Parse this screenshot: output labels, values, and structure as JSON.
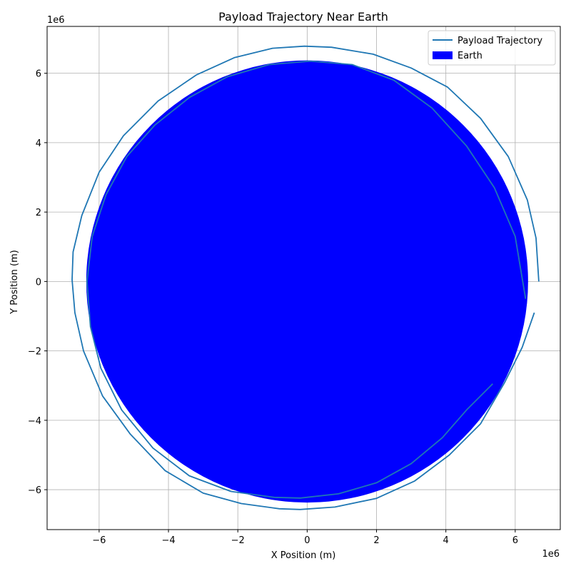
{
  "chart_data": {
    "type": "line",
    "title": "Payload Trajectory Near Earth",
    "xlabel": "X Position (m)",
    "ylabel": "Y Position (m)",
    "x_offset_label": "1e6",
    "y_offset_label": "1e6",
    "xlim": [
      -7.5,
      7.3
    ],
    "ylim": [
      -7.15,
      7.35
    ],
    "x_ticks": [
      -6,
      -4,
      -2,
      0,
      2,
      4,
      6
    ],
    "y_ticks": [
      -6,
      -4,
      -2,
      0,
      2,
      4,
      6
    ],
    "x_tick_labels": [
      "−6",
      "−4",
      "−2",
      "0",
      "2",
      "4",
      "6"
    ],
    "y_tick_labels": [
      "−6",
      "−4",
      "−2",
      "0",
      "2",
      "4",
      "6"
    ],
    "grid": true,
    "legend_position": "top-right",
    "legend": [
      {
        "label": "Payload Trajectory",
        "kind": "line",
        "color": "#1f77b4"
      },
      {
        "label": "Earth",
        "kind": "patch",
        "color": "#0000ff"
      }
    ],
    "earth": {
      "center": [
        0,
        0
      ],
      "radius": 6.371,
      "color": "#0000ff"
    },
    "series": [
      {
        "name": "Payload Trajectory",
        "color": "#1f77b4",
        "orbit_1_x": [
          6.68,
          6.6,
          6.35,
          5.8,
          5.0,
          4.05,
          3.0,
          1.9,
          0.7,
          -0.08,
          -1.0,
          -2.1,
          -3.2,
          -4.3,
          -5.3,
          -6.0,
          -6.5,
          -6.75,
          -6.78,
          -6.7,
          -6.45,
          -5.9,
          -5.1,
          -4.1,
          -3.0,
          -1.9,
          -0.8,
          -0.2,
          0.8,
          2.0,
          3.1,
          4.1,
          5.0,
          5.7,
          6.2,
          6.55
        ],
        "orbit_1_y": [
          0.0,
          1.25,
          2.35,
          3.6,
          4.7,
          5.6,
          6.15,
          6.55,
          6.75,
          6.78,
          6.72,
          6.45,
          5.95,
          5.2,
          4.2,
          3.15,
          1.9,
          0.85,
          0.05,
          -0.9,
          -2.0,
          -3.3,
          -4.4,
          -5.45,
          -6.1,
          -6.4,
          -6.55,
          -6.57,
          -6.5,
          -6.25,
          -5.75,
          -5.0,
          -4.1,
          -2.9,
          -1.9,
          -0.9
        ],
        "orbit_2_x": [
          6.3,
          6.0,
          5.4,
          4.6,
          3.6,
          2.5,
          1.3,
          0.1,
          -1.1,
          -2.3,
          -3.4,
          -4.4,
          -5.2,
          -5.8,
          -6.2,
          -6.35,
          -6.25,
          -5.95,
          -5.35,
          -4.45,
          -3.4,
          -2.2,
          -0.95,
          -0.2,
          0.9,
          2.0,
          3.0,
          3.9,
          4.6,
          5.0,
          5.35
        ],
        "orbit_2_y": [
          -0.5,
          1.3,
          2.7,
          3.9,
          5.0,
          5.8,
          6.25,
          6.35,
          6.25,
          5.9,
          5.3,
          4.5,
          3.6,
          2.5,
          1.3,
          0.0,
          -1.3,
          -2.5,
          -3.7,
          -4.8,
          -5.6,
          -6.05,
          -6.22,
          -6.24,
          -6.12,
          -5.8,
          -5.25,
          -4.5,
          -3.7,
          -3.3,
          -2.95
        ]
      }
    ]
  }
}
